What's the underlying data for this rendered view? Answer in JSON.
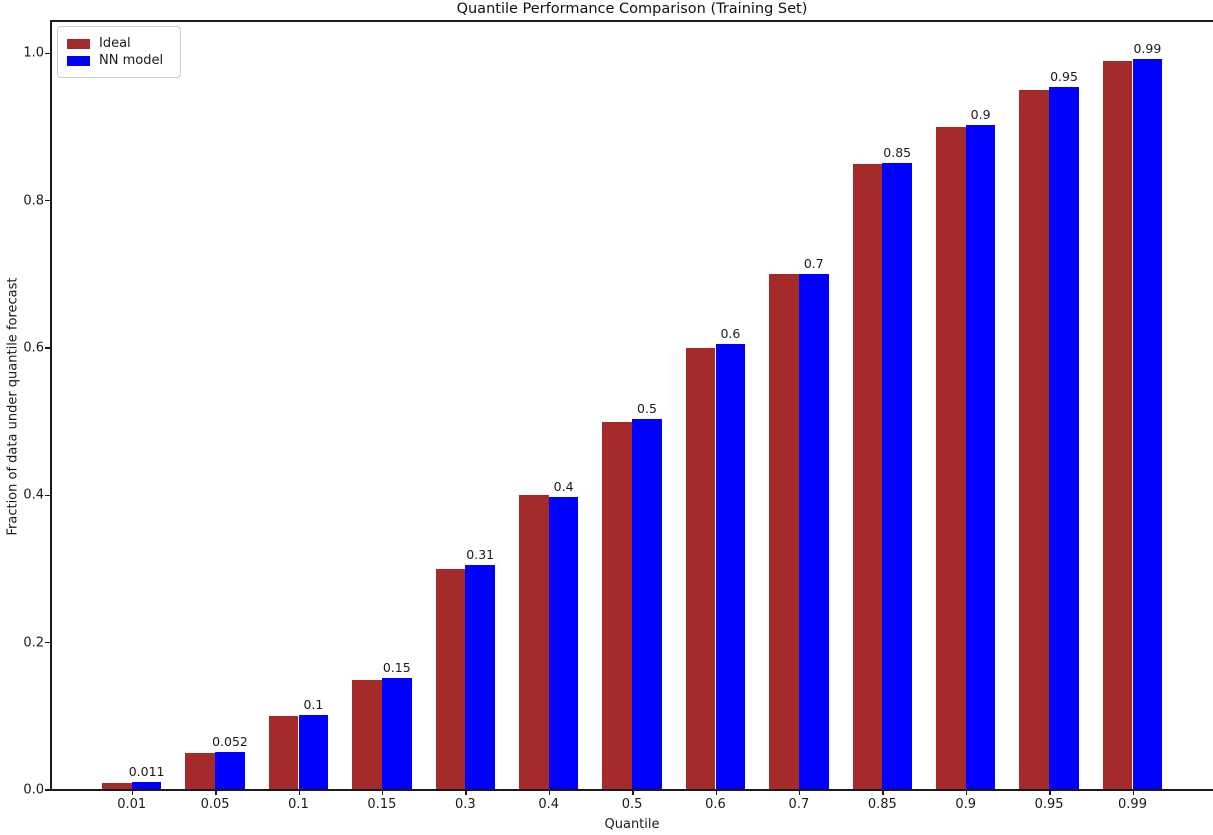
{
  "chart_data": {
    "type": "bar",
    "title": "Quantile Performance Comparison (Training Set)",
    "xlabel": "Quantile",
    "ylabel": "Fraction of data under quantile forecast",
    "categories": [
      "0.01",
      "0.05",
      "0.1",
      "0.15",
      "0.3",
      "0.4",
      "0.5",
      "0.6",
      "0.7",
      "0.85",
      "0.9",
      "0.95",
      "0.99"
    ],
    "series": [
      {
        "name": "Ideal",
        "color": "#A52A2A",
        "values": [
          0.01,
          0.05,
          0.1,
          0.15,
          0.3,
          0.4,
          0.5,
          0.6,
          0.7,
          0.85,
          0.9,
          0.95,
          0.99
        ]
      },
      {
        "name": "NN model",
        "color": "#0000FF",
        "values": [
          0.011,
          0.052,
          0.102,
          0.152,
          0.306,
          0.398,
          0.504,
          0.605,
          0.7,
          0.851,
          0.903,
          0.955,
          0.993
        ]
      }
    ],
    "bar_labels": [
      "0.011",
      "0.052",
      "0.1",
      "0.15",
      "0.31",
      "0.4",
      "0.5",
      "0.6",
      "0.7",
      "0.85",
      "0.9",
      "0.95",
      "0.99"
    ],
    "yticks": [
      "0.0",
      "0.2",
      "0.4",
      "0.6",
      "0.8",
      "1.0"
    ],
    "ytick_values": [
      0.0,
      0.2,
      0.4,
      0.6,
      0.8,
      1.0
    ],
    "ylim": [
      0,
      1.044
    ],
    "legend_position": "upper left",
    "grid": false,
    "axis_color": "#1a1a1a"
  }
}
